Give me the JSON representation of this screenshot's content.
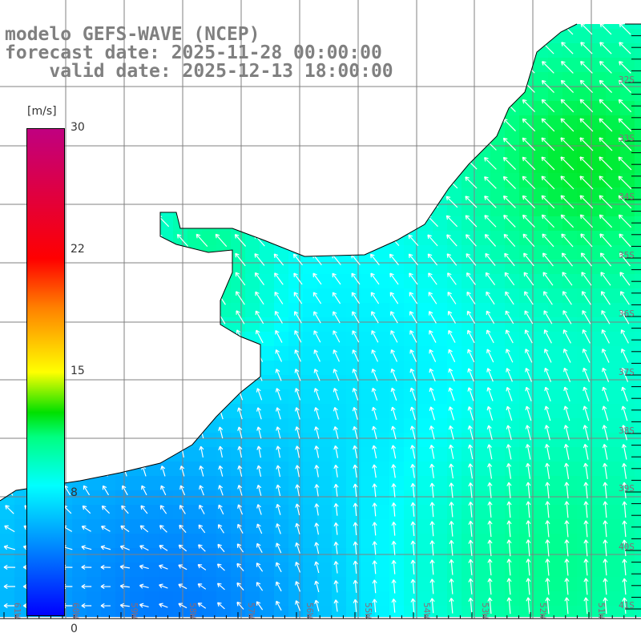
{
  "title": {
    "model": "modelo GEFS-WAVE (NCEP)",
    "forecast": "forecast date: 2025-11-28 00:00:00",
    "valid": "    valid date: 2025-12-13 18:00:00"
  },
  "colorbar": {
    "unit": "[m/s]",
    "ticks": [
      "30",
      "22",
      "15",
      "8",
      "0"
    ],
    "range": [
      0,
      30
    ],
    "stops": [
      [
        0,
        "#0000ff"
      ],
      [
        4,
        "#0080ff"
      ],
      [
        8,
        "#00ffff"
      ],
      [
        11,
        "#00ff80"
      ],
      [
        12.5,
        "#00e000"
      ],
      [
        15,
        "#ffff00"
      ],
      [
        19,
        "#ff8000"
      ],
      [
        22,
        "#ff0000"
      ],
      [
        30,
        "#c00080"
      ]
    ]
  },
  "lat_labels": [
    "32S",
    "33S",
    "34S",
    "35S",
    "36S",
    "37S",
    "38S",
    "39S",
    "40S",
    "41S"
  ],
  "lon_labels": [
    "61W",
    "60W",
    "59W",
    "58W",
    "57W",
    "56W",
    "55W",
    "54W",
    "53W",
    "52W",
    "51W"
  ],
  "colors": {
    "grid": "#808080",
    "arrow": "#ffffff",
    "coast": "#000000",
    "label": "#8a6a7a"
  }
}
